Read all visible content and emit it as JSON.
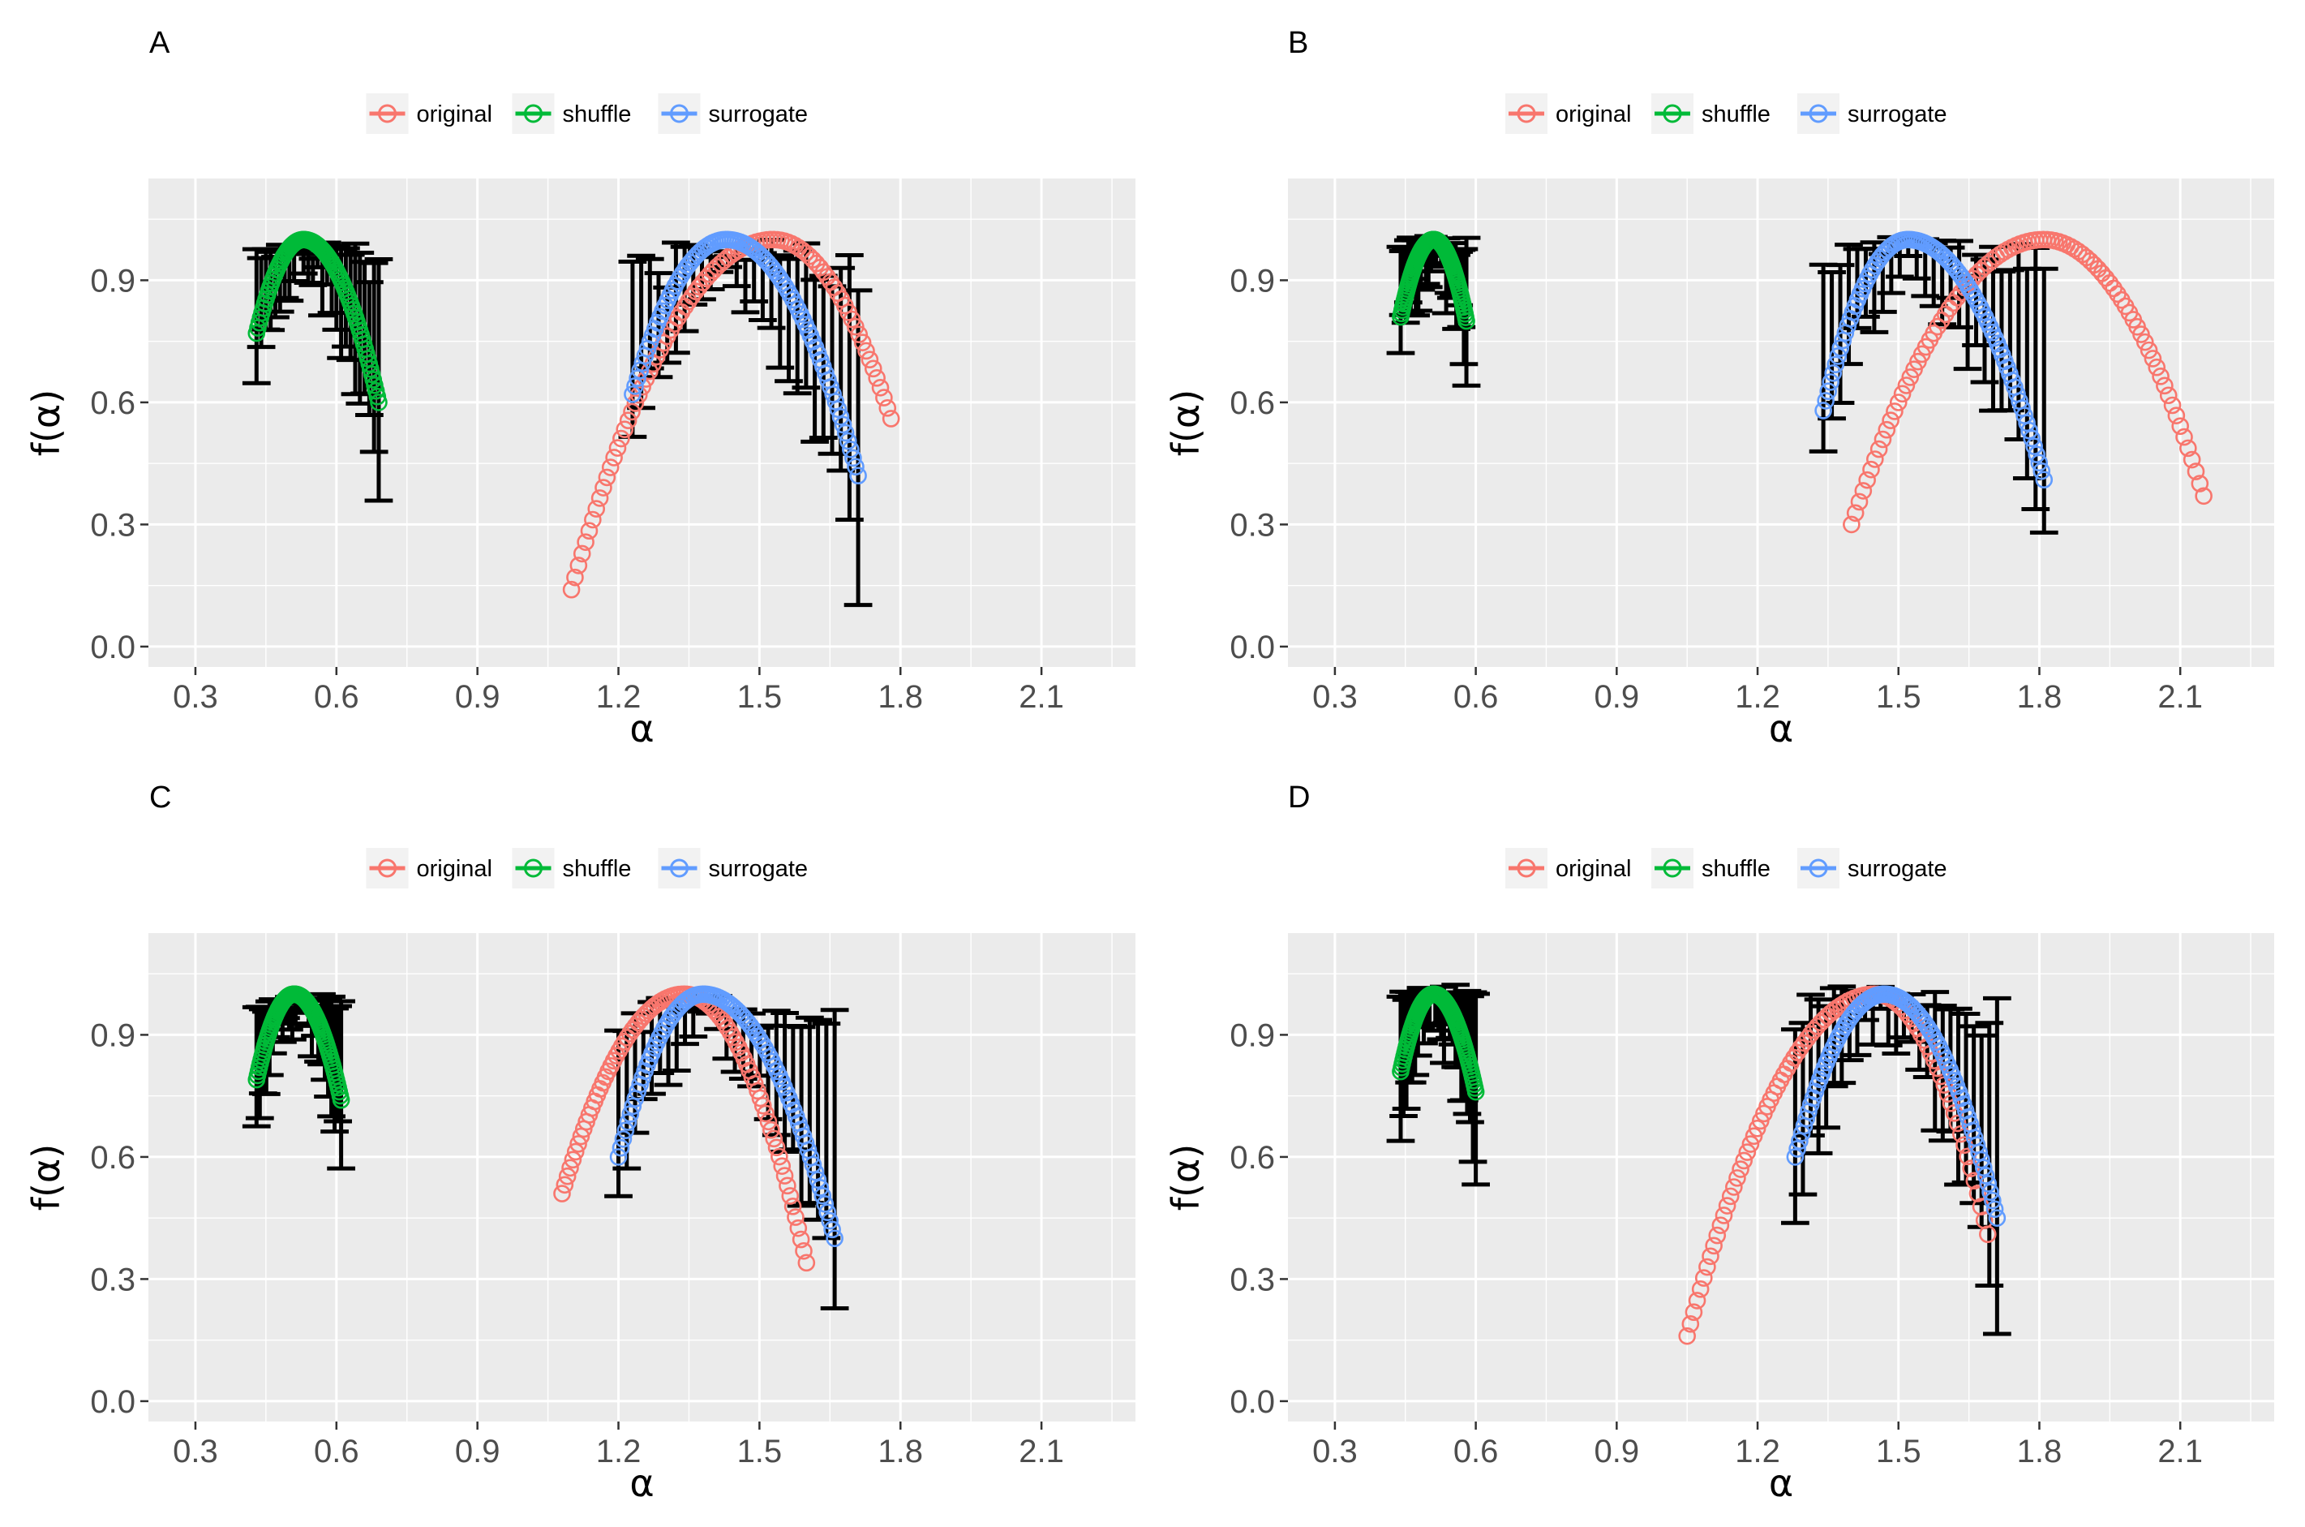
{
  "colors": {
    "original": "#F8766D",
    "shuffle": "#00BA38",
    "surrogate": "#619CFF",
    "panel_background": "#EBEBEB",
    "grid": "#FFFFFF",
    "error_bar": "#000000"
  },
  "legend": {
    "placement": "top",
    "entries": [
      "original",
      "shuffle",
      "surrogate"
    ]
  },
  "chart_data": [
    {
      "type": "scatter",
      "panel": "A",
      "xlabel": "α",
      "ylabel": "f(α)",
      "xlim": [
        0.2,
        2.3
      ],
      "ylim": [
        -0.05,
        1.15
      ],
      "xticks": [
        0.3,
        0.6,
        0.9,
        1.2,
        1.5,
        1.8,
        2.1
      ],
      "xtick_labels": [
        "0.3",
        "0.6",
        "0.9",
        "1.2",
        "1.5",
        "1.8",
        "2.1"
      ],
      "yticks": [
        0.0,
        0.3,
        0.6,
        0.9
      ],
      "ytick_labels": [
        "0.0",
        "0.3",
        "0.6",
        "0.9"
      ],
      "grid": true,
      "series": [
        {
          "name": "original",
          "alpha_min": 1.1,
          "f_min_left": 0.14,
          "alpha_peak": 1.53,
          "f_peak": 1.0,
          "alpha_max": 1.78,
          "f_min_right": 0.56
        },
        {
          "name": "shuffle",
          "alpha_min": 0.43,
          "f_min_left": 0.77,
          "alpha_peak": 0.53,
          "f_peak": 1.0,
          "alpha_max": 0.69,
          "f_min_right": 0.6,
          "errorbar_left_min": 0.62,
          "errorbar_right_min": 0.38,
          "errorbar_max": 1.0,
          "errorbar_halfwidth": 0.03
        },
        {
          "name": "surrogate",
          "alpha_min": 1.23,
          "f_min_left": 0.62,
          "alpha_peak": 1.43,
          "f_peak": 1.0,
          "alpha_max": 1.71,
          "f_min_right": 0.42,
          "errorbar_left_min": 0.46,
          "errorbar_right_min": 0.15,
          "errorbar_max": 1.0,
          "errorbar_halfwidth": 0.03
        }
      ]
    },
    {
      "type": "scatter",
      "panel": "B",
      "xlabel": "α",
      "ylabel": "f(α)",
      "xlim": [
        0.2,
        2.3
      ],
      "ylim": [
        -0.05,
        1.15
      ],
      "xticks": [
        0.3,
        0.6,
        0.9,
        1.2,
        1.5,
        1.8,
        2.1
      ],
      "xtick_labels": [
        "0.3",
        "0.6",
        "0.9",
        "1.2",
        "1.5",
        "1.8",
        "2.1"
      ],
      "yticks": [
        0.0,
        0.3,
        0.6,
        0.9
      ],
      "ytick_labels": [
        "0.0",
        "0.3",
        "0.6",
        "0.9"
      ],
      "grid": true,
      "series": [
        {
          "name": "original",
          "alpha_min": 1.4,
          "f_min_left": 0.3,
          "alpha_peak": 1.81,
          "f_peak": 1.0,
          "alpha_max": 2.15,
          "f_min_right": 0.37
        },
        {
          "name": "shuffle",
          "alpha_min": 0.44,
          "f_min_left": 0.81,
          "alpha_peak": 0.51,
          "f_peak": 1.0,
          "alpha_max": 0.58,
          "f_min_right": 0.8,
          "errorbar_left_min": 0.71,
          "errorbar_right_min": 0.66,
          "errorbar_max": 1.01,
          "errorbar_halfwidth": 0.03
        },
        {
          "name": "surrogate",
          "alpha_min": 1.34,
          "f_min_left": 0.58,
          "alpha_peak": 1.52,
          "f_peak": 1.0,
          "alpha_max": 1.81,
          "f_min_right": 0.41,
          "errorbar_left_min": 0.44,
          "errorbar_right_min": 0.24,
          "errorbar_max": 1.01,
          "errorbar_halfwidth": 0.03
        }
      ]
    },
    {
      "type": "scatter",
      "panel": "C",
      "xlabel": "α",
      "ylabel": "f(α)",
      "xlim": [
        0.2,
        2.3
      ],
      "ylim": [
        -0.05,
        1.15
      ],
      "xticks": [
        0.3,
        0.6,
        0.9,
        1.2,
        1.5,
        1.8,
        2.1
      ],
      "xtick_labels": [
        "0.3",
        "0.6",
        "0.9",
        "1.2",
        "1.5",
        "1.8",
        "2.1"
      ],
      "yticks": [
        0.0,
        0.3,
        0.6,
        0.9
      ],
      "ytick_labels": [
        "0.0",
        "0.3",
        "0.6",
        "0.9"
      ],
      "grid": true,
      "series": [
        {
          "name": "original",
          "alpha_min": 1.08,
          "f_min_left": 0.51,
          "alpha_peak": 1.34,
          "f_peak": 1.0,
          "alpha_max": 1.6,
          "f_min_right": 0.34
        },
        {
          "name": "shuffle",
          "alpha_min": 0.43,
          "f_min_left": 0.79,
          "alpha_peak": 0.51,
          "f_peak": 1.0,
          "alpha_max": 0.61,
          "f_min_right": 0.74,
          "errorbar_left_min": 0.68,
          "errorbar_right_min": 0.6,
          "errorbar_max": 1.0,
          "errorbar_halfwidth": 0.03
        },
        {
          "name": "surrogate",
          "alpha_min": 1.2,
          "f_min_left": 0.6,
          "alpha_peak": 1.38,
          "f_peak": 1.0,
          "alpha_max": 1.66,
          "f_min_right": 0.4,
          "errorbar_left_min": 0.48,
          "errorbar_right_min": 0.22,
          "errorbar_max": 1.0,
          "errorbar_halfwidth": 0.03
        }
      ]
    },
    {
      "type": "scatter",
      "panel": "D",
      "xlabel": "α",
      "ylabel": "f(α)",
      "xlim": [
        0.2,
        2.3
      ],
      "ylim": [
        -0.05,
        1.15
      ],
      "xticks": [
        0.3,
        0.6,
        0.9,
        1.2,
        1.5,
        1.8,
        2.1
      ],
      "xtick_labels": [
        "0.3",
        "0.6",
        "0.9",
        "1.2",
        "1.5",
        "1.8",
        "2.1"
      ],
      "yticks": [
        0.0,
        0.3,
        0.6,
        0.9
      ],
      "ytick_labels": [
        "0.0",
        "0.3",
        "0.6",
        "0.9"
      ],
      "grid": true,
      "series": [
        {
          "name": "original",
          "alpha_min": 1.05,
          "f_min_left": 0.16,
          "alpha_peak": 1.45,
          "f_peak": 1.0,
          "alpha_max": 1.69,
          "f_min_right": 0.41
        },
        {
          "name": "shuffle",
          "alpha_min": 0.44,
          "f_min_left": 0.81,
          "alpha_peak": 0.51,
          "f_peak": 1.0,
          "alpha_max": 0.6,
          "f_min_right": 0.76,
          "errorbar_left_min": 0.66,
          "errorbar_right_min": 0.57,
          "errorbar_max": 1.03,
          "errorbar_halfwidth": 0.03
        },
        {
          "name": "surrogate",
          "alpha_min": 1.28,
          "f_min_left": 0.6,
          "alpha_peak": 1.47,
          "f_peak": 1.0,
          "alpha_max": 1.71,
          "f_min_right": 0.45,
          "errorbar_left_min": 0.43,
          "errorbar_right_min": 0.19,
          "errorbar_max": 1.02,
          "errorbar_halfwidth": 0.03
        }
      ]
    }
  ]
}
